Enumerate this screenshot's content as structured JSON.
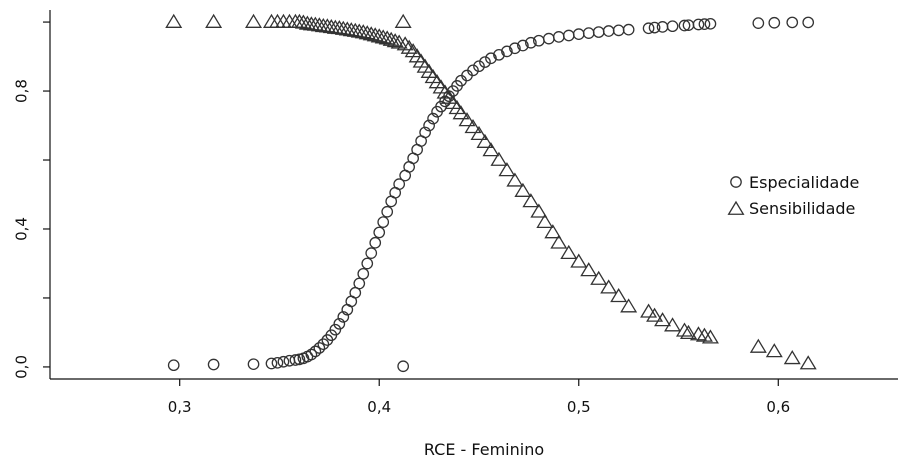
{
  "chart_data": {
    "type": "scatter",
    "title": "",
    "xlabel": "RCE - Feminino",
    "ylabel": "",
    "xlim": [
      0.235,
      0.66
    ],
    "ylim": [
      -0.035,
      1.035
    ],
    "x_ticks": [
      0.3,
      0.4,
      0.5,
      0.6
    ],
    "x_tick_labels": [
      "0,3",
      "0,4",
      "0,5",
      "0,6"
    ],
    "y_ticks": [
      0.0,
      0.4,
      0.8
    ],
    "y_tick_labels": [
      "0,0",
      "0,4",
      "0,8"
    ],
    "y_minor_ticks": [
      0.2,
      0.6,
      1.0
    ],
    "grid": false,
    "legend_position": "right",
    "marker_color": "#333333",
    "series": [
      {
        "name": "Especialidade",
        "marker": "circle",
        "x": [
          0.297,
          0.317,
          0.337,
          0.346,
          0.349,
          0.352,
          0.355,
          0.358,
          0.36,
          0.362,
          0.364,
          0.366,
          0.368,
          0.37,
          0.372,
          0.374,
          0.376,
          0.378,
          0.38,
          0.382,
          0.384,
          0.386,
          0.388,
          0.39,
          0.392,
          0.394,
          0.396,
          0.398,
          0.4,
          0.402,
          0.404,
          0.406,
          0.408,
          0.41,
          0.412,
          0.413,
          0.415,
          0.417,
          0.419,
          0.421,
          0.423,
          0.425,
          0.427,
          0.429,
          0.431,
          0.433,
          0.435,
          0.437,
          0.439,
          0.441,
          0.444,
          0.447,
          0.45,
          0.453,
          0.456,
          0.46,
          0.464,
          0.468,
          0.472,
          0.476,
          0.48,
          0.485,
          0.49,
          0.495,
          0.5,
          0.505,
          0.51,
          0.515,
          0.52,
          0.525,
          0.535,
          0.538,
          0.542,
          0.547,
          0.553,
          0.555,
          0.56,
          0.563,
          0.566,
          0.59,
          0.598,
          0.607,
          0.615
        ],
        "y": [
          0.005,
          0.007,
          0.008,
          0.01,
          0.012,
          0.015,
          0.018,
          0.02,
          0.022,
          0.025,
          0.03,
          0.036,
          0.045,
          0.055,
          0.066,
          0.078,
          0.092,
          0.108,
          0.125,
          0.145,
          0.166,
          0.19,
          0.215,
          0.242,
          0.27,
          0.3,
          0.33,
          0.36,
          0.39,
          0.42,
          0.45,
          0.48,
          0.505,
          0.53,
          0.002,
          0.555,
          0.58,
          0.605,
          0.63,
          0.655,
          0.68,
          0.7,
          0.72,
          0.74,
          0.755,
          0.77,
          0.785,
          0.8,
          0.815,
          0.83,
          0.845,
          0.86,
          0.872,
          0.884,
          0.895,
          0.905,
          0.915,
          0.924,
          0.932,
          0.94,
          0.946,
          0.952,
          0.957,
          0.961,
          0.965,
          0.968,
          0.971,
          0.974,
          0.976,
          0.978,
          0.982,
          0.984,
          0.986,
          0.988,
          0.99,
          0.991,
          0.993,
          0.994,
          0.995,
          0.997,
          0.998,
          0.999,
          0.999
        ]
      },
      {
        "name": "Sensibilidade",
        "marker": "triangle",
        "x": [
          0.297,
          0.317,
          0.337,
          0.346,
          0.349,
          0.352,
          0.355,
          0.358,
          0.36,
          0.362,
          0.364,
          0.366,
          0.368,
          0.37,
          0.372,
          0.374,
          0.376,
          0.378,
          0.38,
          0.382,
          0.384,
          0.386,
          0.388,
          0.39,
          0.392,
          0.394,
          0.396,
          0.398,
          0.4,
          0.402,
          0.404,
          0.406,
          0.408,
          0.41,
          0.412,
          0.413,
          0.415,
          0.417,
          0.419,
          0.421,
          0.423,
          0.425,
          0.427,
          0.429,
          0.431,
          0.433,
          0.435,
          0.437,
          0.439,
          0.441,
          0.444,
          0.447,
          0.45,
          0.453,
          0.456,
          0.46,
          0.464,
          0.468,
          0.472,
          0.476,
          0.48,
          0.483,
          0.487,
          0.49,
          0.495,
          0.5,
          0.505,
          0.51,
          0.515,
          0.52,
          0.525,
          0.535,
          0.538,
          0.542,
          0.547,
          0.553,
          0.555,
          0.56,
          0.563,
          0.566,
          0.59,
          0.598,
          0.607,
          0.615
        ],
        "y": [
          1.0,
          1.0,
          1.0,
          1.0,
          1.0,
          1.0,
          1.0,
          1.0,
          1.0,
          0.998,
          0.995,
          0.993,
          0.992,
          0.99,
          0.988,
          0.987,
          0.985,
          0.983,
          0.982,
          0.98,
          0.978,
          0.976,
          0.974,
          0.972,
          0.97,
          0.967,
          0.964,
          0.961,
          0.958,
          0.955,
          0.952,
          0.948,
          0.944,
          0.94,
          1.0,
          0.935,
          0.925,
          0.915,
          0.9,
          0.885,
          0.87,
          0.855,
          0.84,
          0.825,
          0.81,
          0.795,
          0.78,
          0.765,
          0.75,
          0.735,
          0.715,
          0.695,
          0.675,
          0.652,
          0.628,
          0.6,
          0.57,
          0.54,
          0.51,
          0.48,
          0.45,
          0.42,
          0.39,
          0.36,
          0.33,
          0.305,
          0.28,
          0.255,
          0.23,
          0.205,
          0.175,
          0.16,
          0.148,
          0.135,
          0.12,
          0.105,
          0.098,
          0.094,
          0.09,
          0.085,
          0.058,
          0.045,
          0.025,
          0.01
        ]
      }
    ]
  }
}
